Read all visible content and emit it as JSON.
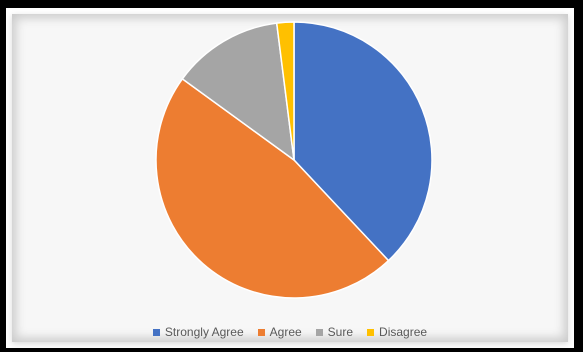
{
  "chart_data": {
    "type": "pie",
    "title": "",
    "categories": [
      "Strongly Agree",
      "Agree",
      "Sure",
      "Disagree"
    ],
    "values": [
      38,
      47,
      13,
      2
    ],
    "colors": [
      "#4472c4",
      "#ed7d31",
      "#a5a5a5",
      "#ffc000"
    ],
    "start_angle_deg": 0,
    "legend_position": "bottom"
  }
}
